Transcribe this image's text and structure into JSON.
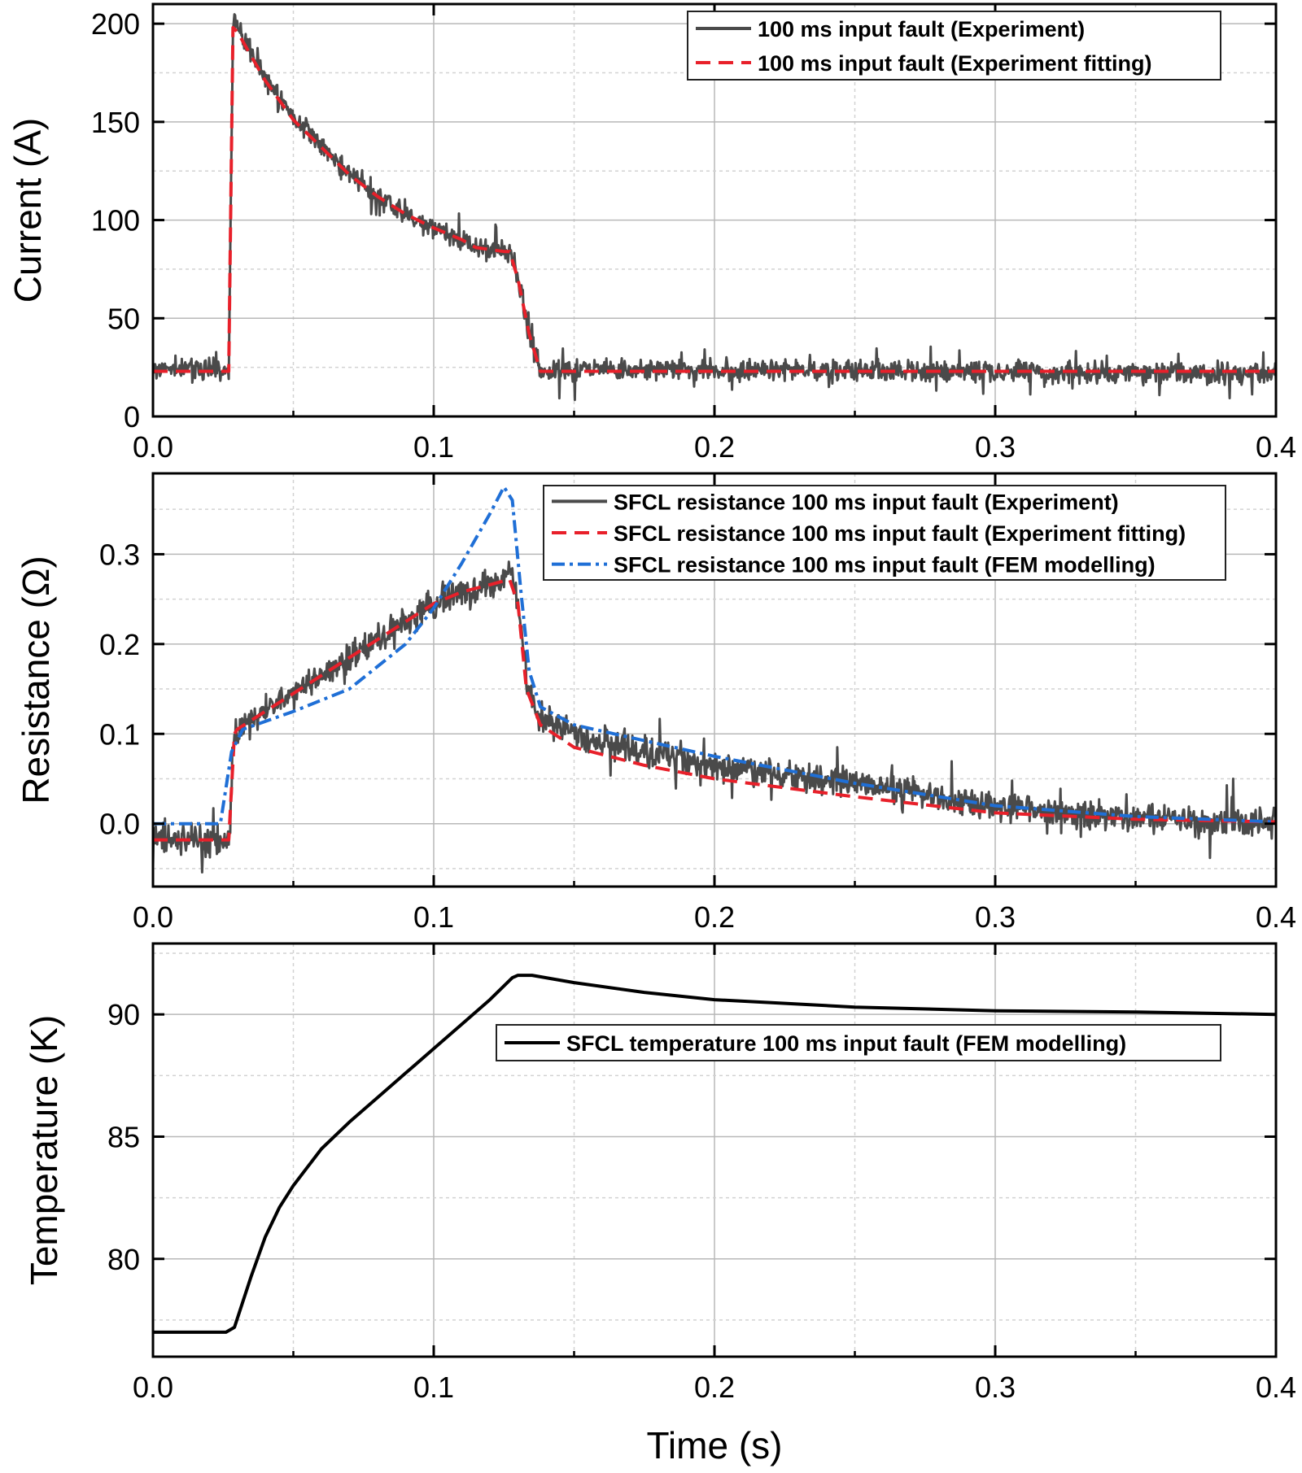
{
  "chart_data": [
    {
      "type": "line",
      "xlabel": "",
      "ylabel": "Current (A)",
      "xlim": [
        0,
        0.4
      ],
      "ylim": [
        0,
        210
      ],
      "xticks": [
        "0.0",
        "0.1",
        "0.2",
        "0.3",
        "0.4"
      ],
      "yticks": [
        "0",
        "50",
        "100",
        "150",
        "200"
      ],
      "ytick_values": [
        0,
        50,
        100,
        150,
        200
      ],
      "grid": true,
      "legend_position": "top-right",
      "series": [
        {
          "name": "100 ms input fault (Experiment)",
          "color": "#4a4a4a",
          "style": "solid",
          "noise": 5,
          "points": [
            [
              0,
              24
            ],
            [
              0.027,
              24
            ],
            [
              0.0285,
              200
            ],
            [
              0.03,
              198
            ],
            [
              0.04,
              172
            ],
            [
              0.05,
              152
            ],
            [
              0.06,
              138
            ],
            [
              0.07,
              124
            ],
            [
              0.08,
              112
            ],
            [
              0.09,
              103
            ],
            [
              0.1,
              96
            ],
            [
              0.11,
              90
            ],
            [
              0.115,
              86
            ],
            [
              0.125,
              84
            ],
            [
              0.127,
              84
            ],
            [
              0.13,
              70
            ],
            [
              0.134,
              42
            ],
            [
              0.138,
              24
            ],
            [
              0.4,
              22
            ]
          ]
        },
        {
          "name": "100 ms input fault (Experiment fitting)",
          "color": "#e8202a",
          "style": "dashed",
          "noise": 0,
          "points": [
            [
              0,
              23
            ],
            [
              0.027,
              23
            ],
            [
              0.0285,
              198
            ],
            [
              0.03,
              196
            ],
            [
              0.04,
              171
            ],
            [
              0.05,
              151
            ],
            [
              0.06,
              137
            ],
            [
              0.07,
              123
            ],
            [
              0.08,
              112
            ],
            [
              0.09,
              103
            ],
            [
              0.1,
              96
            ],
            [
              0.11,
              90
            ],
            [
              0.115,
              86
            ],
            [
              0.125,
              84
            ],
            [
              0.127,
              84
            ],
            [
              0.13,
              70
            ],
            [
              0.134,
              42
            ],
            [
              0.138,
              23
            ],
            [
              0.4,
              23
            ]
          ]
        }
      ]
    },
    {
      "type": "line",
      "xlabel": "",
      "ylabel": "Resistance (Ω)",
      "xlim": [
        0,
        0.4
      ],
      "ylim": [
        -0.07,
        0.39
      ],
      "xticks": [
        "0.0",
        "0.1",
        "0.2",
        "0.3",
        "0.4"
      ],
      "yticks": [
        "0.0",
        "0.1",
        "0.2",
        "0.3"
      ],
      "ytick_values": [
        0,
        0.1,
        0.2,
        0.3
      ],
      "grid": true,
      "legend_position": "top-right",
      "series": [
        {
          "name": "SFCL resistance 100 ms input fault (Experiment)",
          "color": "#4a4a4a",
          "style": "solid",
          "noise": 0.015,
          "points": [
            [
              0,
              -0.018
            ],
            [
              0.027,
              -0.018
            ],
            [
              0.029,
              0.1
            ],
            [
              0.03,
              0.105
            ],
            [
              0.05,
              0.145
            ],
            [
              0.07,
              0.185
            ],
            [
              0.09,
              0.225
            ],
            [
              0.1,
              0.245
            ],
            [
              0.11,
              0.258
            ],
            [
              0.12,
              0.268
            ],
            [
              0.127,
              0.275
            ],
            [
              0.13,
              0.25
            ],
            [
              0.133,
              0.16
            ],
            [
              0.137,
              0.12
            ],
            [
              0.15,
              0.1
            ],
            [
              0.175,
              0.08
            ],
            [
              0.2,
              0.065
            ],
            [
              0.25,
              0.045
            ],
            [
              0.3,
              0.02
            ],
            [
              0.35,
              0.005
            ],
            [
              0.4,
              0.0
            ]
          ]
        },
        {
          "name": "SFCL resistance 100 ms input fault (Experiment fitting)",
          "color": "#e8202a",
          "style": "dashed",
          "noise": 0,
          "points": [
            [
              0,
              -0.018
            ],
            [
              0.027,
              -0.018
            ],
            [
              0.029,
              0.1
            ],
            [
              0.03,
              0.105
            ],
            [
              0.05,
              0.145
            ],
            [
              0.07,
              0.185
            ],
            [
              0.09,
              0.225
            ],
            [
              0.1,
              0.245
            ],
            [
              0.11,
              0.258
            ],
            [
              0.12,
              0.266
            ],
            [
              0.127,
              0.272
            ],
            [
              0.13,
              0.245
            ],
            [
              0.133,
              0.15
            ],
            [
              0.138,
              0.11
            ],
            [
              0.15,
              0.085
            ],
            [
              0.175,
              0.065
            ],
            [
              0.2,
              0.05
            ],
            [
              0.25,
              0.03
            ],
            [
              0.3,
              0.012
            ],
            [
              0.35,
              0.005
            ],
            [
              0.4,
              0.002
            ]
          ]
        },
        {
          "name": "SFCL resistance 100 ms input fault (FEM modelling)",
          "color": "#1f6fd6",
          "style": "dashdot",
          "noise": 0,
          "points": [
            [
              0,
              0
            ],
            [
              0.024,
              0
            ],
            [
              0.028,
              0.08
            ],
            [
              0.032,
              0.105
            ],
            [
              0.05,
              0.125
            ],
            [
              0.07,
              0.15
            ],
            [
              0.09,
              0.2
            ],
            [
              0.1,
              0.24
            ],
            [
              0.11,
              0.29
            ],
            [
              0.12,
              0.345
            ],
            [
              0.125,
              0.375
            ],
            [
              0.128,
              0.36
            ],
            [
              0.131,
              0.26
            ],
            [
              0.134,
              0.17
            ],
            [
              0.138,
              0.13
            ],
            [
              0.15,
              0.11
            ],
            [
              0.2,
              0.075
            ],
            [
              0.25,
              0.045
            ],
            [
              0.3,
              0.02
            ],
            [
              0.35,
              0.008
            ],
            [
              0.4,
              0.002
            ]
          ]
        }
      ]
    },
    {
      "type": "line",
      "xlabel": "Time (s)",
      "ylabel": "Temperature (K)",
      "xlim": [
        0,
        0.4
      ],
      "ylim": [
        76,
        92.9
      ],
      "xticks": [
        "0.0",
        "0.1",
        "0.2",
        "0.3",
        "0.4"
      ],
      "yticks": [
        "80",
        "85",
        "90"
      ],
      "ytick_values": [
        80,
        85,
        90
      ],
      "grid": true,
      "legend_position": "center-right",
      "series": [
        {
          "name": "SFCL temperature 100 ms input fault (FEM modelling)",
          "color": "#000000",
          "style": "solid",
          "noise": 0,
          "points": [
            [
              0,
              77
            ],
            [
              0.026,
              77
            ],
            [
              0.029,
              77.2
            ],
            [
              0.035,
              79.3
            ],
            [
              0.04,
              80.9
            ],
            [
              0.045,
              82.1
            ],
            [
              0.05,
              83.0
            ],
            [
              0.06,
              84.5
            ],
            [
              0.07,
              85.6
            ],
            [
              0.08,
              86.6
            ],
            [
              0.09,
              87.6
            ],
            [
              0.1,
              88.6
            ],
            [
              0.11,
              89.6
            ],
            [
              0.12,
              90.6
            ],
            [
              0.128,
              91.5
            ],
            [
              0.13,
              91.6
            ],
            [
              0.135,
              91.6
            ],
            [
              0.15,
              91.3
            ],
            [
              0.175,
              90.9
            ],
            [
              0.2,
              90.6
            ],
            [
              0.25,
              90.3
            ],
            [
              0.3,
              90.15
            ],
            [
              0.35,
              90.1
            ],
            [
              0.4,
              90.0
            ]
          ]
        }
      ]
    }
  ]
}
